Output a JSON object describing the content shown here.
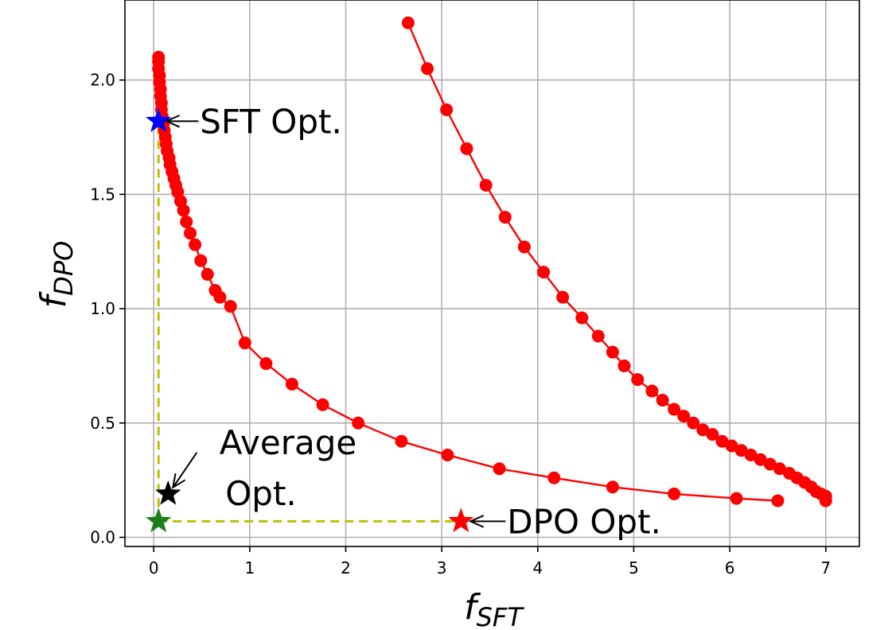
{
  "chart_data": {
    "type": "line",
    "xlabel": {
      "base": "f",
      "sub": "SFT"
    },
    "ylabel": {
      "base": "f",
      "sub": "DPO"
    },
    "xlim": [
      -0.3,
      7.35
    ],
    "ylim": [
      -0.04,
      2.35
    ],
    "xticks": [
      0,
      1,
      2,
      3,
      4,
      5,
      6,
      7
    ],
    "yticks": [
      0.0,
      0.5,
      1.0,
      1.5,
      2.0
    ],
    "xtick_labels": [
      "0",
      "1",
      "2",
      "3",
      "4",
      "5",
      "6",
      "7"
    ],
    "ytick_labels": [
      "0.0",
      "0.5",
      "1.0",
      "1.5",
      "2.0"
    ],
    "grid": true,
    "series": [
      {
        "name": "front-inner",
        "color": "#ff0000",
        "points": [
          [
            0.05,
            2.1
          ],
          [
            0.05,
            2.08
          ],
          [
            0.05,
            2.05
          ],
          [
            0.06,
            2.02
          ],
          [
            0.06,
            1.99
          ],
          [
            0.07,
            1.96
          ],
          [
            0.07,
            1.93
          ],
          [
            0.08,
            1.9
          ],
          [
            0.08,
            1.87
          ],
          [
            0.09,
            1.84
          ],
          [
            0.1,
            1.81
          ],
          [
            0.11,
            1.78
          ],
          [
            0.12,
            1.75
          ],
          [
            0.13,
            1.72
          ],
          [
            0.14,
            1.69
          ],
          [
            0.16,
            1.66
          ],
          [
            0.17,
            1.63
          ],
          [
            0.19,
            1.6
          ],
          [
            0.21,
            1.57
          ],
          [
            0.23,
            1.54
          ],
          [
            0.25,
            1.51
          ],
          [
            0.28,
            1.47
          ],
          [
            0.31,
            1.43
          ],
          [
            0.34,
            1.38
          ],
          [
            0.38,
            1.33
          ],
          [
            0.43,
            1.28
          ],
          [
            0.49,
            1.21
          ],
          [
            0.56,
            1.15
          ],
          [
            0.64,
            1.08
          ],
          [
            0.69,
            1.05
          ],
          [
            0.8,
            1.01
          ],
          [
            0.95,
            0.85
          ],
          [
            1.17,
            0.76
          ],
          [
            1.44,
            0.67
          ],
          [
            1.76,
            0.58
          ],
          [
            2.13,
            0.5
          ],
          [
            2.58,
            0.42
          ],
          [
            3.06,
            0.36
          ],
          [
            3.6,
            0.3
          ],
          [
            4.17,
            0.26
          ],
          [
            4.78,
            0.22
          ],
          [
            5.42,
            0.19
          ],
          [
            6.07,
            0.17
          ],
          [
            6.5,
            0.16
          ]
        ]
      },
      {
        "name": "front-outer",
        "color": "#ff0000",
        "points": [
          [
            2.65,
            2.25
          ],
          [
            2.85,
            2.05
          ],
          [
            3.05,
            1.87
          ],
          [
            3.26,
            1.7
          ],
          [
            3.46,
            1.54
          ],
          [
            3.66,
            1.4
          ],
          [
            3.86,
            1.27
          ],
          [
            4.06,
            1.16
          ],
          [
            4.26,
            1.05
          ],
          [
            4.46,
            0.96
          ],
          [
            4.63,
            0.88
          ],
          [
            4.78,
            0.81
          ],
          [
            4.9,
            0.75
          ],
          [
            5.04,
            0.69
          ],
          [
            5.19,
            0.64
          ],
          [
            5.3,
            0.6
          ],
          [
            5.42,
            0.56
          ],
          [
            5.52,
            0.53
          ],
          [
            5.62,
            0.5
          ],
          [
            5.72,
            0.47
          ],
          [
            5.82,
            0.45
          ],
          [
            5.92,
            0.42
          ],
          [
            6.02,
            0.4
          ],
          [
            6.12,
            0.38
          ],
          [
            6.22,
            0.36
          ],
          [
            6.32,
            0.34
          ],
          [
            6.42,
            0.32
          ],
          [
            6.52,
            0.3
          ],
          [
            6.62,
            0.28
          ],
          [
            6.7,
            0.26
          ],
          [
            6.78,
            0.24
          ],
          [
            6.85,
            0.22
          ],
          [
            6.9,
            0.2
          ],
          [
            6.95,
            0.19
          ],
          [
            7.0,
            0.18
          ],
          [
            7.0,
            0.16
          ]
        ]
      }
    ],
    "guides": {
      "vertical": {
        "x": 0.05,
        "y0": 0.07,
        "y1": 1.82
      },
      "horizontal": {
        "y": 0.07,
        "x0": 0.05,
        "x1": 3.2
      }
    },
    "stars": [
      {
        "name": "sft-opt-star",
        "x": 0.05,
        "y": 1.82,
        "color": "#0000ff"
      },
      {
        "name": "average-opt-star",
        "x": 0.15,
        "y": 0.19,
        "color": "#000000"
      },
      {
        "name": "origin-star",
        "x": 0.05,
        "y": 0.07,
        "color": "#1a7f1a"
      },
      {
        "name": "dpo-opt-star",
        "x": 3.2,
        "y": 0.07,
        "color": "#ff0000"
      }
    ],
    "annotations": [
      {
        "name": "sft-opt-annotation",
        "text": "SFT Opt.",
        "target": [
          0.05,
          1.82
        ]
      },
      {
        "name": "average-opt-annotation",
        "text": "Average Opt.",
        "lines": [
          "Average",
          "Opt."
        ],
        "target": [
          0.15,
          0.19
        ]
      },
      {
        "name": "dpo-opt-annotation",
        "text": "DPO Opt.",
        "target": [
          3.2,
          0.07
        ]
      }
    ]
  }
}
